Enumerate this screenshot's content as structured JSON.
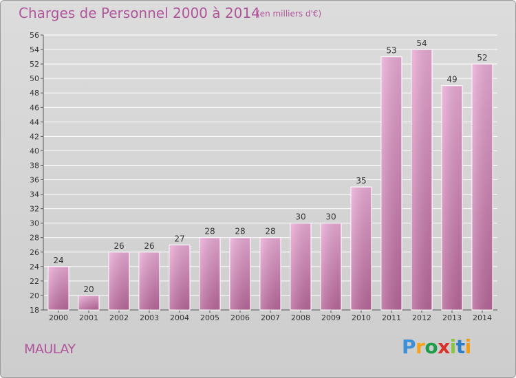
{
  "chart_data": {
    "type": "bar",
    "title": "Charges de Personnel 2000 à 2014",
    "subtitle": "(en milliers d'€)",
    "categories": [
      "2000",
      "2001",
      "2002",
      "2003",
      "2004",
      "2005",
      "2006",
      "2007",
      "2008",
      "2009",
      "2010",
      "2011",
      "2012",
      "2013",
      "2014"
    ],
    "values": [
      24,
      20,
      26,
      26,
      27,
      28,
      28,
      28,
      30,
      30,
      35,
      53,
      54,
      49,
      52
    ],
    "ylim": [
      18,
      56
    ],
    "ytick_step": 2,
    "grid": true,
    "xlabel": "",
    "ylabel": ""
  },
  "commune": "MAULAY",
  "logo": {
    "letters": [
      "P",
      "r",
      "o",
      "x",
      "i",
      "t",
      "i"
    ],
    "colors": [
      "#3d8fd6",
      "#f7a21b",
      "#1f9c4a",
      "#d8322a",
      "#8cc63f",
      "#2d7ec9",
      "#f39c12"
    ]
  },
  "colors": {
    "bar_top": "#e7a8d2",
    "bar_bottom": "#b96a9b",
    "text_accent": "#b0559b"
  }
}
